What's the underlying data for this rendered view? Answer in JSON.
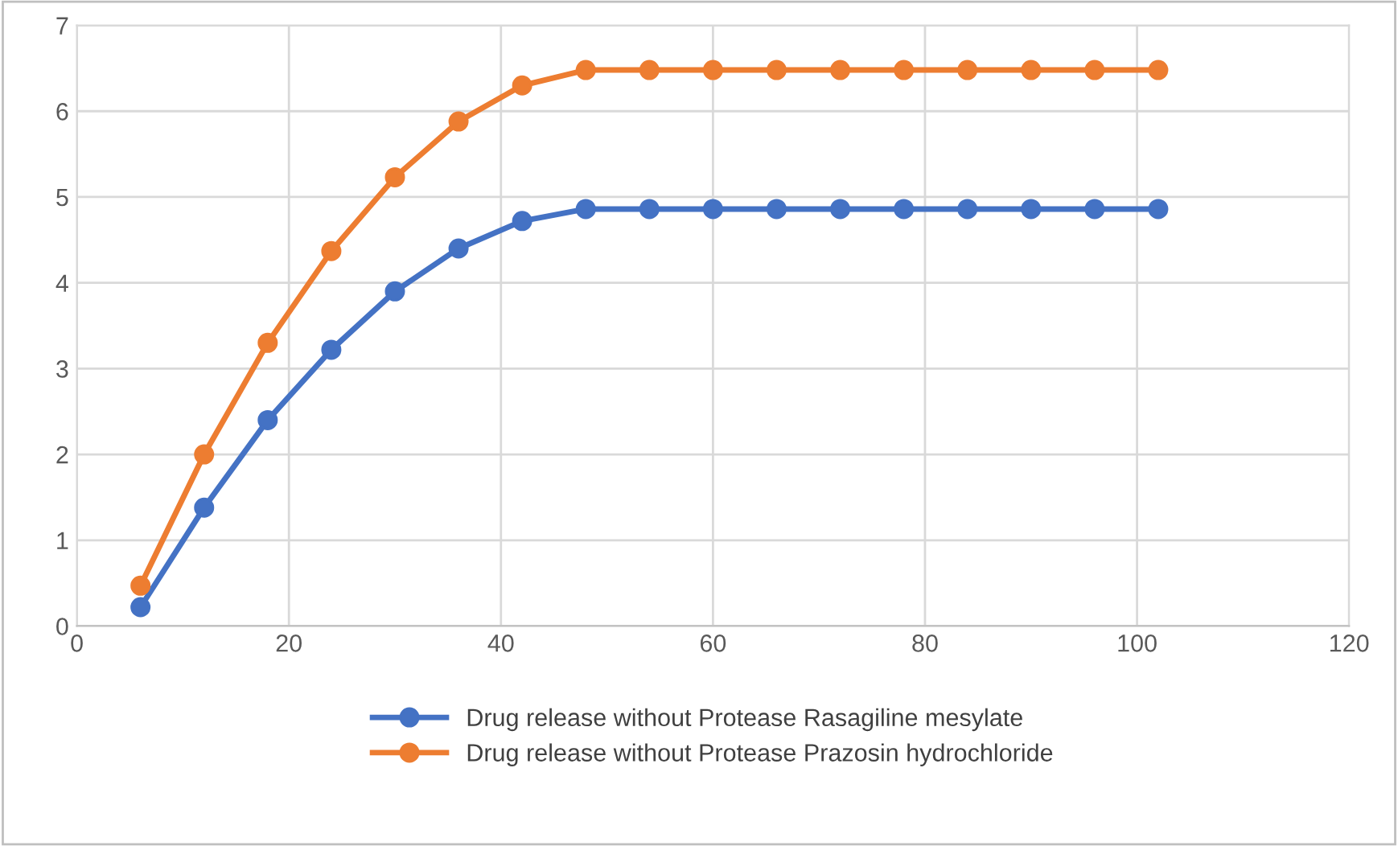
{
  "chart_data": {
    "type": "line",
    "x": [
      6,
      12,
      18,
      24,
      30,
      36,
      42,
      48,
      54,
      60,
      66,
      72,
      78,
      84,
      90,
      96,
      102
    ],
    "series": [
      {
        "name": "Drug release without Protease Rasagiline mesylate",
        "color": "#4472c4",
        "values": [
          0.22,
          1.38,
          2.4,
          3.22,
          3.9,
          4.4,
          4.72,
          4.86,
          4.86,
          4.86,
          4.86,
          4.86,
          4.86,
          4.86,
          4.86,
          4.86,
          4.86
        ]
      },
      {
        "name": "Drug release without Protease Prazosin hydrochloride",
        "color": "#ed7d31",
        "values": [
          0.47,
          2.0,
          3.3,
          4.37,
          5.23,
          5.88,
          6.3,
          6.48,
          6.48,
          6.48,
          6.48,
          6.48,
          6.48,
          6.48,
          6.48,
          6.48,
          6.48
        ]
      }
    ],
    "xlim": [
      0,
      120
    ],
    "xticks": [
      0,
      20,
      40,
      60,
      80,
      100,
      120
    ],
    "ylim": [
      0,
      7
    ],
    "yticks": [
      0,
      1,
      2,
      3,
      4,
      5,
      6,
      7
    ],
    "grid": true,
    "legend": "bottom",
    "marker": "circle",
    "line_style": "solid"
  }
}
